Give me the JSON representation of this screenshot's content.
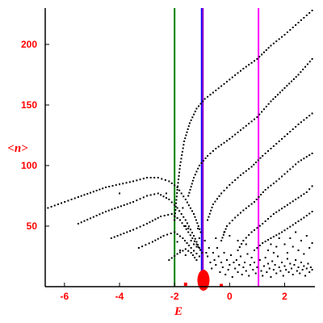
{
  "chart_data": {
    "type": "scatter",
    "title": "",
    "xlabel": "E",
    "ylabel": "<n>",
    "xlim": [
      -6.7,
      3.1
    ],
    "ylim": [
      0,
      230
    ],
    "xticks": [
      "-6",
      "-4",
      "-2",
      "0",
      "2"
    ],
    "xtick_values": [
      -6,
      -4,
      -2,
      0,
      2
    ],
    "yticks": [
      "50",
      "100",
      "150",
      "200"
    ],
    "ytick_values": [
      50,
      100,
      150,
      200
    ],
    "grid": false,
    "colors": {
      "axis": "#000000",
      "ticks": "#ff0000",
      "points": "#000000",
      "green_line": "#007f00",
      "blue_line": "#0000ff",
      "purple_line": "#9900cc",
      "magenta_line": "#ff00ff",
      "red_blob": "#ff0000"
    },
    "vertical_lines": [
      {
        "x": -2.0,
        "color": "#007f00"
      },
      {
        "x": -1.0,
        "color": "#0000ff"
      },
      {
        "x": -0.97,
        "color": "#9900cc"
      },
      {
        "x": 1.05,
        "color": "#ff00ff"
      }
    ],
    "curves": [
      {
        "x_start": -6.6,
        "x_end": 3.0,
        "points": [
          [
            -6.6,
            65
          ],
          [
            -5.5,
            74
          ],
          [
            -4.5,
            82
          ],
          [
            -3.5,
            87
          ],
          [
            -3.0,
            90
          ],
          [
            -2.6,
            90
          ],
          [
            -2.2,
            87
          ],
          [
            -1.9,
            82
          ],
          [
            -1.6,
            72
          ],
          [
            -1.3,
            60
          ],
          [
            -1.05,
            45
          ]
        ]
      },
      {
        "x_start": -5.5,
        "x_end": 2.9,
        "points": [
          [
            -5.5,
            52
          ],
          [
            -4.5,
            62
          ],
          [
            -3.5,
            70
          ],
          [
            -3.0,
            75
          ],
          [
            -2.6,
            77
          ],
          [
            -2.2,
            72
          ],
          [
            -1.9,
            65
          ],
          [
            -1.6,
            55
          ],
          [
            -1.3,
            42
          ],
          [
            -1.1,
            32
          ]
        ]
      },
      {
        "x_start": -4.3,
        "x_end": -1.0,
        "points": [
          [
            -4.3,
            40
          ],
          [
            -3.5,
            47
          ],
          [
            -3.0,
            52
          ],
          [
            -2.5,
            58
          ],
          [
            -2.1,
            60
          ],
          [
            -1.8,
            55
          ],
          [
            -1.5,
            45
          ],
          [
            -1.2,
            35
          ],
          [
            -1.0,
            28
          ]
        ]
      },
      {
        "x_start": -3.3,
        "x_end": -1.0,
        "points": [
          [
            -3.3,
            32
          ],
          [
            -2.8,
            37
          ],
          [
            -2.4,
            42
          ],
          [
            -2.0,
            45
          ],
          [
            -1.7,
            40
          ],
          [
            -1.4,
            32
          ],
          [
            -1.1,
            25
          ]
        ]
      },
      {
        "x_start": -2.2,
        "x_end": -1.2,
        "points": [
          [
            -2.2,
            22
          ],
          [
            -1.9,
            27
          ],
          [
            -1.6,
            31
          ],
          [
            -1.4,
            28
          ],
          [
            -1.2,
            22
          ]
        ]
      },
      {
        "x_start": -2.0,
        "x_end": 3.0,
        "points": [
          [
            -2.0,
            55
          ],
          [
            -1.9,
            80
          ],
          [
            -1.8,
            100
          ],
          [
            -1.65,
            120
          ],
          [
            -1.45,
            135
          ],
          [
            -1.2,
            147
          ],
          [
            -0.9,
            155
          ],
          [
            -0.5,
            162
          ],
          [
            0.0,
            171
          ],
          [
            0.5,
            180
          ],
          [
            1.0,
            188
          ],
          [
            1.5,
            199
          ],
          [
            2.0,
            208
          ],
          [
            2.5,
            218
          ],
          [
            3.0,
            228
          ]
        ]
      },
      {
        "x_start": -1.5,
        "x_end": 3.0,
        "points": [
          [
            -1.5,
            75
          ],
          [
            -1.3,
            90
          ],
          [
            -1.1,
            100
          ],
          [
            -0.8,
            108
          ],
          [
            -0.5,
            114
          ],
          [
            0.0,
            122
          ],
          [
            0.5,
            131
          ],
          [
            1.0,
            140
          ],
          [
            1.5,
            153
          ],
          [
            2.0,
            164
          ],
          [
            2.5,
            175
          ],
          [
            3.0,
            188
          ]
        ]
      },
      {
        "x_start": -0.8,
        "x_end": 3.0,
        "points": [
          [
            -0.8,
            55
          ],
          [
            -0.6,
            68
          ],
          [
            -0.3,
            77
          ],
          [
            0.0,
            84
          ],
          [
            0.4,
            92
          ],
          [
            0.8,
            99
          ],
          [
            1.2,
            108
          ],
          [
            1.6,
            116
          ],
          [
            2.0,
            124
          ],
          [
            2.5,
            134
          ],
          [
            3.0,
            143
          ]
        ]
      },
      {
        "x_start": -0.3,
        "x_end": 3.0,
        "points": [
          [
            -0.3,
            38
          ],
          [
            -0.1,
            50
          ],
          [
            0.2,
            57
          ],
          [
            0.5,
            63
          ],
          [
            0.9,
            70
          ],
          [
            1.3,
            80
          ],
          [
            1.7,
            87
          ],
          [
            2.1,
            95
          ],
          [
            2.5,
            103
          ],
          [
            3.0,
            110
          ]
        ]
      },
      {
        "x_start": 0.3,
        "x_end": 3.0,
        "points": [
          [
            0.3,
            30
          ],
          [
            0.5,
            38
          ],
          [
            0.8,
            45
          ],
          [
            1.2,
            52
          ],
          [
            1.6,
            60
          ],
          [
            2.0,
            66
          ],
          [
            2.4,
            72
          ],
          [
            2.8,
            78
          ],
          [
            3.0,
            83
          ]
        ]
      },
      {
        "x_start": 0.9,
        "x_end": 3.0,
        "points": [
          [
            0.9,
            30
          ],
          [
            1.2,
            36
          ],
          [
            1.5,
            40
          ],
          [
            1.9,
            45
          ],
          [
            2.3,
            51
          ],
          [
            2.7,
            57
          ],
          [
            3.0,
            62
          ]
        ]
      }
    ],
    "scattered_points": [
      [
        -4.0,
        77
      ],
      [
        -2.3,
        77
      ],
      [
        -1.7,
        65
      ],
      [
        -1.6,
        50
      ],
      [
        -1.5,
        48
      ],
      [
        -1.4,
        38
      ],
      [
        -1.3,
        35
      ],
      [
        -1.2,
        33
      ],
      [
        -1.15,
        48
      ],
      [
        -1.1,
        40
      ],
      [
        -0.9,
        38
      ],
      [
        -0.85,
        28
      ],
      [
        -0.8,
        25
      ],
      [
        -0.75,
        32
      ],
      [
        -0.7,
        20
      ],
      [
        -0.65,
        15
      ],
      [
        -0.6,
        28
      ],
      [
        -0.55,
        22
      ],
      [
        -0.5,
        18
      ],
      [
        -0.45,
        32
      ],
      [
        -0.4,
        25
      ],
      [
        -0.35,
        12
      ],
      [
        -0.3,
        20
      ],
      [
        -0.25,
        16
      ],
      [
        -0.2,
        28
      ],
      [
        -0.15,
        10
      ],
      [
        -0.1,
        22
      ],
      [
        -0.05,
        14
      ],
      [
        0.0,
        18
      ],
      [
        0.05,
        26
      ],
      [
        0.1,
        8
      ],
      [
        0.15,
        20
      ],
      [
        0.2,
        15
      ],
      [
        0.25,
        22
      ],
      [
        0.3,
        12
      ],
      [
        0.35,
        18
      ],
      [
        0.4,
        25
      ],
      [
        0.45,
        10
      ],
      [
        0.5,
        16
      ],
      [
        0.55,
        20
      ],
      [
        0.6,
        13
      ],
      [
        0.65,
        27
      ],
      [
        0.7,
        9
      ],
      [
        0.75,
        18
      ],
      [
        0.8,
        24
      ],
      [
        0.85,
        14
      ],
      [
        0.9,
        20
      ],
      [
        0.95,
        11
      ],
      [
        1.0,
        16
      ],
      [
        1.1,
        22
      ],
      [
        1.15,
        13
      ],
      [
        1.2,
        9
      ],
      [
        1.25,
        17
      ],
      [
        1.3,
        24
      ],
      [
        1.35,
        12
      ],
      [
        1.4,
        19
      ],
      [
        1.45,
        15
      ],
      [
        1.5,
        8
      ],
      [
        1.55,
        21
      ],
      [
        1.6,
        14
      ],
      [
        1.65,
        18
      ],
      [
        1.7,
        11
      ],
      [
        1.75,
        25
      ],
      [
        1.8,
        16
      ],
      [
        1.85,
        13
      ],
      [
        1.9,
        20
      ],
      [
        1.95,
        9
      ],
      [
        2.0,
        17
      ],
      [
        2.05,
        14
      ],
      [
        2.1,
        23
      ],
      [
        2.15,
        12
      ],
      [
        2.2,
        19
      ],
      [
        2.25,
        15
      ],
      [
        2.3,
        10
      ],
      [
        2.35,
        18
      ],
      [
        2.4,
        22
      ],
      [
        2.45,
        13
      ],
      [
        2.5,
        16
      ],
      [
        2.55,
        11
      ],
      [
        2.6,
        20
      ],
      [
        2.65,
        14
      ],
      [
        2.7,
        17
      ],
      [
        2.75,
        9
      ],
      [
        2.8,
        15
      ],
      [
        2.85,
        19
      ],
      [
        2.9,
        12
      ],
      [
        2.95,
        16
      ],
      [
        3.0,
        14
      ],
      [
        2.0,
        35
      ],
      [
        2.1,
        28
      ],
      [
        2.2,
        40
      ],
      [
        2.3,
        33
      ],
      [
        2.4,
        45
      ],
      [
        2.5,
        30
      ],
      [
        2.6,
        38
      ],
      [
        2.7,
        27
      ],
      [
        2.8,
        42
      ],
      [
        2.9,
        32
      ],
      [
        3.0,
        36
      ],
      [
        1.4,
        30
      ],
      [
        1.5,
        35
      ],
      [
        1.6,
        28
      ],
      [
        1.7,
        33
      ],
      [
        1.8,
        40
      ],
      [
        0.0,
        42
      ],
      [
        0.3,
        38
      ],
      [
        0.6,
        35
      ],
      [
        -0.2,
        45
      ],
      [
        -0.5,
        40
      ],
      [
        -1.8,
        30
      ],
      [
        -1.6,
        26
      ],
      [
        -1.9,
        37
      ]
    ],
    "red_blob": {
      "x": -0.95,
      "y": 4,
      "rx": 0.22,
      "ry": 6
    },
    "red_small_points": [
      [
        -1.6,
        2
      ],
      [
        -0.3,
        1
      ]
    ]
  }
}
